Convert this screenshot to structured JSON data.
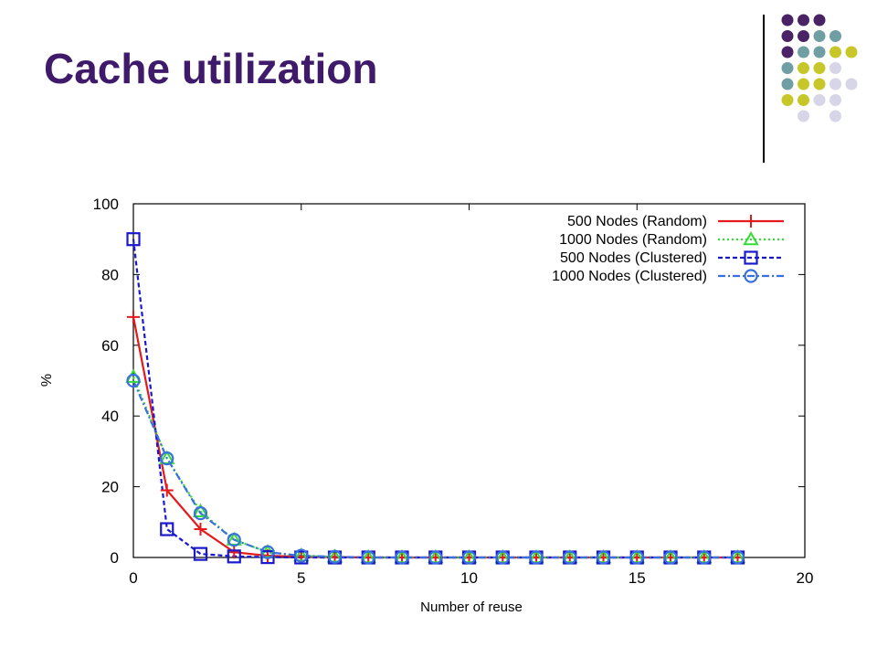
{
  "slide": {
    "title": "Cache utilization",
    "decoration_colors": [
      "#4a2366",
      "#6f9fa2",
      "#c7c72a",
      "#d6d6e8"
    ]
  },
  "chart_data": {
    "type": "line",
    "xlabel": "Number of reuse",
    "ylabel": "%",
    "xlim": [
      0,
      20
    ],
    "ylim": [
      0,
      100
    ],
    "xticks": [
      0,
      5,
      10,
      15,
      20
    ],
    "yticks": [
      0,
      20,
      40,
      60,
      80,
      100
    ],
    "grid": false,
    "legend_position": "top-right",
    "x": [
      0,
      1,
      2,
      3,
      4,
      5,
      6,
      7,
      8,
      9,
      10,
      11,
      12,
      13,
      14,
      15,
      16,
      17,
      18
    ],
    "series": [
      {
        "name": "500 Nodes (Random)",
        "color": "#e41a1c",
        "dash": "solid",
        "marker": "plus",
        "values": [
          68,
          19,
          8,
          1.5,
          0.5,
          0.2,
          0.1,
          0,
          0,
          0,
          0,
          0,
          0,
          0,
          0,
          0,
          0,
          0,
          0
        ]
      },
      {
        "name": "1000 Nodes (Random)",
        "color": "#33dd33",
        "dash": "dotted",
        "marker": "triangle",
        "values": [
          51,
          28,
          13,
          5,
          1.5,
          0.5,
          0.2,
          0,
          0,
          0,
          0,
          0,
          0,
          0,
          0,
          0,
          0,
          0,
          0
        ]
      },
      {
        "name": "500 Nodes (Clustered)",
        "color": "#1a1acc",
        "dash": "dashed",
        "marker": "square",
        "values": [
          90,
          8,
          1,
          0.3,
          0.1,
          0,
          0,
          0,
          0,
          0,
          0,
          0,
          0,
          0,
          0,
          0,
          0,
          0,
          0
        ]
      },
      {
        "name": "1000 Nodes (Clustered)",
        "color": "#3a6fe0",
        "dash": "dashdot",
        "marker": "circle",
        "values": [
          50,
          28,
          12.5,
          5,
          1.5,
          0.5,
          0.2,
          0,
          0,
          0,
          0,
          0,
          0,
          0,
          0,
          0,
          0,
          0,
          0
        ]
      }
    ]
  }
}
